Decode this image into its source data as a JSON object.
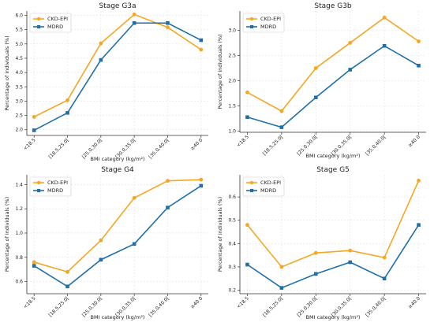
{
  "colors": {
    "ckd_epi": "#f5a623",
    "mdrd": "#1f6fa8"
  },
  "chart_data": [
    {
      "type": "line",
      "title": "Stage G3a",
      "xlabel": "BMI category (kg/m²)",
      "ylabel": "Percentage of individuals (%)",
      "categories": [
        "<18.5",
        "[18.5,25.0[",
        "[25.0,30.0[",
        "[30.0,35.0[",
        "[35.0,40.0[",
        "≥40.0"
      ],
      "ylim": [
        1.8,
        6.15
      ],
      "yticks": [
        "2.0",
        "2.5",
        "3.0",
        "3.5",
        "4.0",
        "4.5",
        "5.0",
        "5.5",
        "6.0"
      ],
      "grid": true,
      "legend": "top-left",
      "series": [
        {
          "name": "CKD-EPI",
          "marker": "circle",
          "values": [
            2.45,
            3.03,
            5.02,
            6.03,
            5.58,
            4.8
          ]
        },
        {
          "name": "MDRD",
          "marker": "square",
          "values": [
            1.98,
            2.59,
            4.44,
            5.73,
            5.73,
            5.13
          ]
        }
      ]
    },
    {
      "type": "line",
      "title": "Stage G3b",
      "xlabel": "BMI category (kg/m²)",
      "ylabel": "Percentage of individuals (%)",
      "categories": [
        "<18.5",
        "[18.5,25.0[",
        "[25.0,30.0[",
        "[30.0,35.0[",
        "[35.0,40.0[",
        "≥40.0"
      ],
      "ylim": [
        0.98,
        3.38
      ],
      "yticks": [
        "1.0",
        "1.5",
        "2.0",
        "2.5",
        "3.0"
      ],
      "grid": true,
      "legend": "top-left",
      "series": [
        {
          "name": "CKD-EPI",
          "marker": "circle",
          "values": [
            1.77,
            1.4,
            2.25,
            2.75,
            3.25,
            2.78
          ]
        },
        {
          "name": "MDRD",
          "marker": "square",
          "values": [
            1.28,
            1.08,
            1.67,
            2.22,
            2.69,
            2.3
          ]
        }
      ]
    },
    {
      "type": "line",
      "title": "Stage G4",
      "xlabel": "BMI category (kg/m²)",
      "ylabel": "Percentage of individuals (%)",
      "categories": [
        "<18.5",
        "[18.5,25.0[",
        "[25.0,30.0[",
        "[30.0,35.0[",
        "[35.0,40.0[",
        "≥40.0"
      ],
      "ylim": [
        0.5,
        1.48
      ],
      "yticks": [
        "0.6",
        "0.8",
        "1.0",
        "1.2",
        "1.4"
      ],
      "grid": true,
      "legend": "top-left",
      "series": [
        {
          "name": "CKD-EPI",
          "marker": "circle",
          "values": [
            0.76,
            0.68,
            0.94,
            1.29,
            1.43,
            1.44
          ]
        },
        {
          "name": "MDRD",
          "marker": "square",
          "values": [
            0.73,
            0.56,
            0.78,
            0.91,
            1.21,
            1.39
          ]
        }
      ]
    },
    {
      "type": "line",
      "title": "Stage G5",
      "xlabel": "BMI category (kg/m²)",
      "ylabel": "Percentage of individuals (%)",
      "categories": [
        "<18.5",
        "[18.5,25.0[",
        "[25.0,30.0[",
        "[30.0,35.0[",
        "[35.0,40.0[",
        "≥40.0"
      ],
      "ylim": [
        0.185,
        0.695
      ],
      "yticks": [
        "0.2",
        "0.3",
        "0.4",
        "0.5",
        "0.6"
      ],
      "grid": true,
      "legend": "top-left",
      "series": [
        {
          "name": "CKD-EPI",
          "marker": "circle",
          "values": [
            0.48,
            0.3,
            0.36,
            0.37,
            0.34,
            0.67
          ]
        },
        {
          "name": "MDRD",
          "marker": "square",
          "values": [
            0.31,
            0.21,
            0.27,
            0.32,
            0.25,
            0.48
          ]
        }
      ]
    }
  ]
}
